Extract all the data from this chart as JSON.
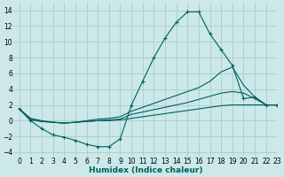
{
  "xlabel": "Humidex (Indice chaleur)",
  "ylabel": "",
  "xlim": [
    -0.5,
    23
  ],
  "ylim": [
    -4.5,
    15
  ],
  "yticks": [
    -4,
    -2,
    0,
    2,
    4,
    6,
    8,
    10,
    12,
    14
  ],
  "xticks": [
    0,
    1,
    2,
    3,
    4,
    5,
    6,
    7,
    8,
    9,
    10,
    11,
    12,
    13,
    14,
    15,
    16,
    17,
    18,
    19,
    20,
    21,
    22,
    23
  ],
  "bg_color": "#cce8e8",
  "grid_color": "#aacccc",
  "line_color": "#006060",
  "lines": [
    {
      "x": [
        0,
        1,
        2,
        3,
        4,
        5,
        6,
        7,
        8,
        9,
        10,
        11,
        12,
        13,
        14,
        15,
        16,
        17,
        18,
        19,
        20,
        21,
        22,
        23
      ],
      "y": [
        1.5,
        0.0,
        -1.0,
        -1.8,
        -2.1,
        -2.5,
        -3.0,
        -3.3,
        -3.3,
        -2.3,
        2.0,
        5.0,
        8.0,
        10.5,
        12.5,
        13.8,
        13.8,
        11.0,
        9.0,
        7.0,
        2.8,
        3.0,
        2.0,
        2.0
      ],
      "marker": "+"
    },
    {
      "x": [
        0,
        1,
        2,
        3,
        4,
        5,
        6,
        7,
        8,
        9,
        10,
        11,
        12,
        13,
        14,
        15,
        16,
        17,
        18,
        19,
        20,
        21,
        22,
        23
      ],
      "y": [
        1.5,
        0.3,
        0.0,
        -0.2,
        -0.3,
        -0.2,
        0.0,
        0.2,
        0.3,
        0.5,
        1.2,
        1.7,
        2.2,
        2.7,
        3.2,
        3.7,
        4.2,
        5.0,
        6.2,
        6.8,
        4.5,
        3.0,
        2.0,
        2.0
      ],
      "marker": null
    },
    {
      "x": [
        0,
        1,
        2,
        3,
        4,
        5,
        6,
        7,
        8,
        9,
        10,
        11,
        12,
        13,
        14,
        15,
        16,
        17,
        18,
        19,
        20,
        21,
        22,
        23
      ],
      "y": [
        1.5,
        0.2,
        -0.1,
        -0.2,
        -0.3,
        -0.2,
        -0.1,
        0.0,
        0.1,
        0.2,
        0.8,
        1.1,
        1.4,
        1.7,
        2.0,
        2.3,
        2.7,
        3.1,
        3.5,
        3.7,
        3.5,
        2.8,
        2.0,
        2.0
      ],
      "marker": null
    },
    {
      "x": [
        0,
        1,
        2,
        3,
        4,
        5,
        6,
        7,
        8,
        9,
        10,
        11,
        12,
        13,
        14,
        15,
        16,
        17,
        18,
        19,
        20,
        21,
        22,
        23
      ],
      "y": [
        1.5,
        0.1,
        -0.1,
        -0.2,
        -0.3,
        -0.2,
        -0.1,
        0.0,
        0.0,
        0.1,
        0.3,
        0.5,
        0.7,
        0.9,
        1.1,
        1.3,
        1.5,
        1.7,
        1.9,
        2.0,
        2.0,
        2.0,
        2.0,
        2.0
      ],
      "marker": null
    }
  ]
}
